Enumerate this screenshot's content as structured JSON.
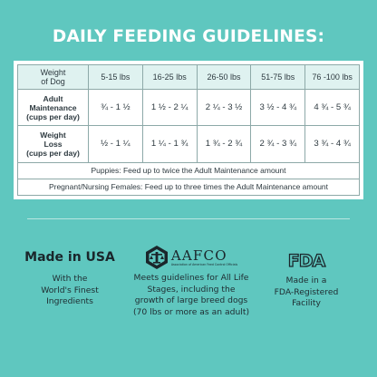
{
  "title": "DAILY FEEDING GUIDELINES:",
  "table": {
    "header": {
      "label": "Weight\nof Dog",
      "cols": [
        "5-15 lbs",
        "16-25 lbs",
        "26-50 lbs",
        "51-75 lbs",
        "76 -100 lbs"
      ]
    },
    "rows": [
      {
        "label": "Adult\nMaintenance\n(cups per day)",
        "values": [
          "¾ - 1 ½",
          "1 ½ - 2 ¼",
          "2 ¼ - 3 ½",
          "3 ½ - 4 ¾",
          "4 ¾ - 5 ¾"
        ]
      },
      {
        "label": "Weight\nLoss\n(cups per day)",
        "values": [
          "½ - 1 ¼",
          "1 ¼ - 1 ¾",
          "1 ¾ - 2 ¾",
          "2 ¾ - 3 ¾",
          "3 ¾ - 4 ¾"
        ]
      }
    ],
    "notes": [
      "Puppies: Feed up to twice the Adult Maintenance amount",
      "Pregnant/Nursing Females: Feed up to three times the Adult Maintenance amount"
    ]
  },
  "badges": {
    "usa": {
      "title": "Made in USA",
      "desc": "With the\nWorld's Finest\nIngredients"
    },
    "aafco": {
      "logo_text": "AAFCO",
      "logo_sub": "Association of American Feed Control Officials",
      "desc": "Meets guidelines for All Life\nStages, including the\ngrowth of large breed dogs\n(70 lbs or more as an adult)"
    },
    "fda": {
      "logo_text": "FDA",
      "desc": "Made in a\nFDA-Registered\nFacility"
    }
  },
  "colors": {
    "background": "#5fc7bf",
    "header_cell": "#dff2f0",
    "text_dark": "#2e3a40"
  },
  "icons": [
    "aafco-seal-icon",
    "fda-logo-icon"
  ]
}
